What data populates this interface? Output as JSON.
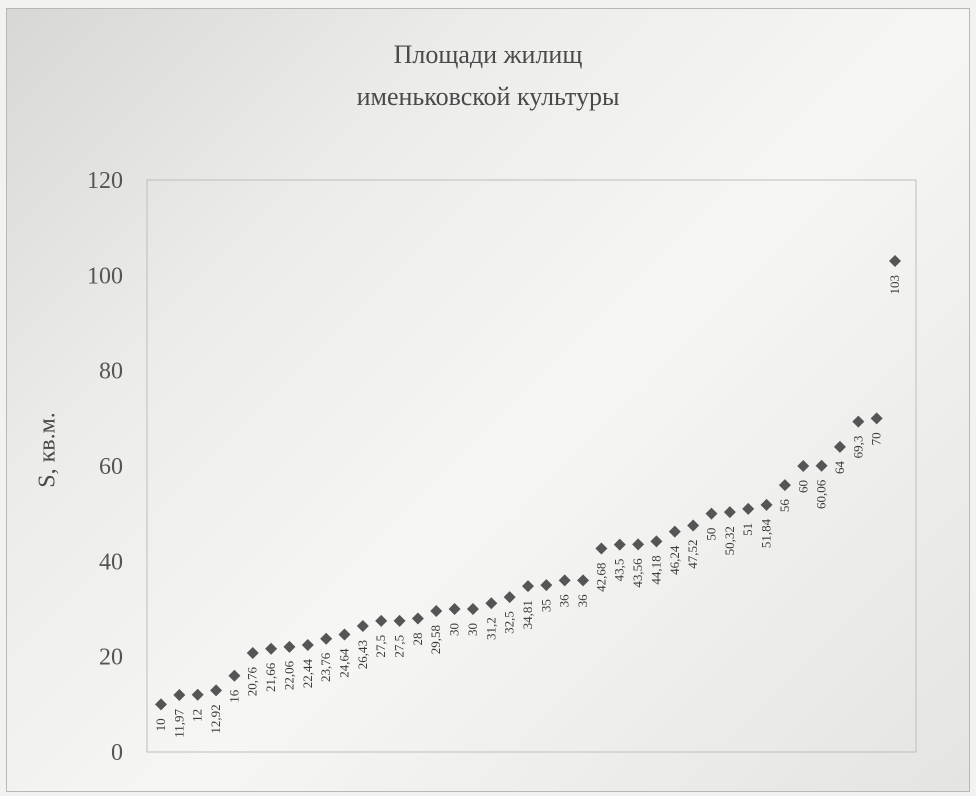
{
  "chart_data": {
    "type": "scatter",
    "title": [
      "Площади жилищ",
      "именьковской культуры"
    ],
    "ylabel": "S, кв.м.",
    "xlabel": "",
    "ylim": [
      0,
      120
    ],
    "yticks": [
      0,
      20,
      40,
      60,
      80,
      100,
      120
    ],
    "grid": false,
    "legend": "none",
    "marker": "diamond",
    "marker_color": "#555555",
    "series": [
      {
        "values": [
          10,
          11.97,
          12,
          12.92,
          16,
          20.76,
          21.66,
          22.06,
          22.44,
          23.76,
          24.64,
          26.43,
          27.5,
          27.5,
          28,
          29.58,
          30,
          30,
          31.2,
          32.5,
          34.81,
          35,
          36,
          36,
          42.68,
          43.5,
          43.56,
          44.18,
          46.24,
          47.52,
          50,
          50.32,
          51,
          51.84,
          56,
          60,
          60.06,
          64,
          69.3,
          70,
          103
        ],
        "labels": [
          "10",
          "11,97",
          "12",
          "12,92",
          "16",
          "20,76",
          "21,66",
          "22,06",
          "22,44",
          "23,76",
          "24,64",
          "26,43",
          "27,5",
          "27,5",
          "28",
          "29,58",
          "30",
          "30",
          "31,2",
          "32,5",
          "34,81",
          "35",
          "36",
          "36",
          "42,68",
          "43,5",
          "43,56",
          "44,18",
          "46,24",
          "47,52",
          "50",
          "50,32",
          "51",
          "51,84",
          "56",
          "60",
          "60,06",
          "64",
          "69,3",
          "70",
          "103"
        ]
      }
    ]
  }
}
